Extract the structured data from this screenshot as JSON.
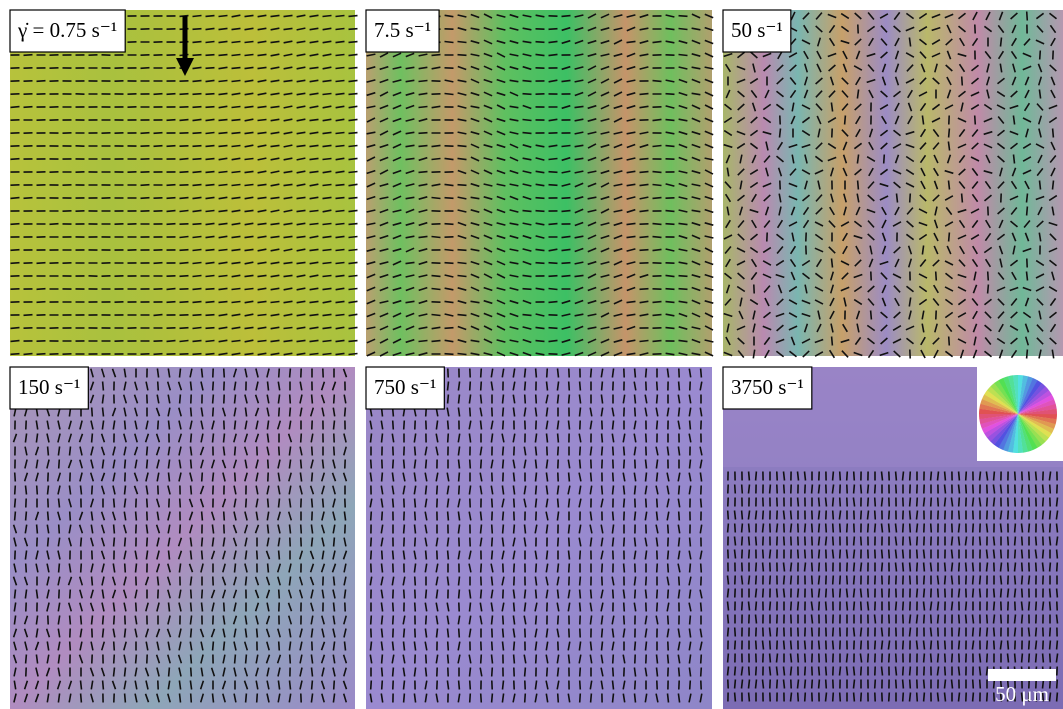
{
  "panels": [
    {
      "label": "γ̇ = 0.75 s⁻¹"
    },
    {
      "label": "7.5 s⁻¹"
    },
    {
      "label": "50 s⁻¹"
    },
    {
      "label": "150 s⁻¹"
    },
    {
      "label": "750 s⁻¹"
    },
    {
      "label": "3750 s⁻¹"
    }
  ],
  "scale_bar": {
    "label": "50 μm"
  }
}
